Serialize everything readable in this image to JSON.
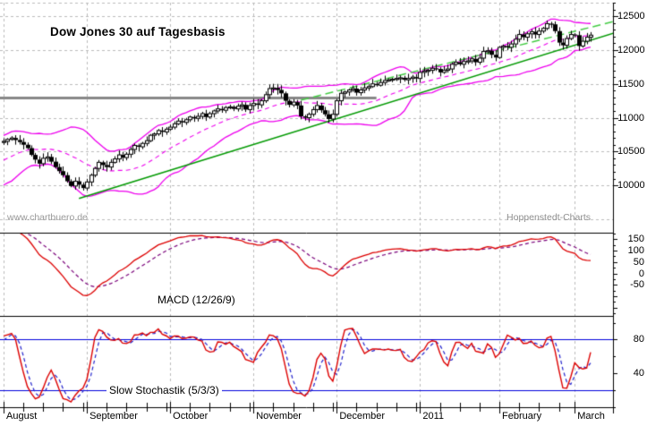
{
  "watermarks": {
    "left": "www.chartbuero.de",
    "right": "Hoppenstedt-Charts"
  },
  "colors": {
    "grid": "#bbbbbb",
    "border": "#000000",
    "candle_up": "#ffffff",
    "candle_down": "#000000",
    "candle_outline": "#000000",
    "bollinger": "#ee00ee",
    "trendline": "#009900",
    "channel": "#44cc44",
    "resistance": "#888888",
    "macd_line": "#dd0000",
    "macd_signal": "#7a007a",
    "macd_hist": "#2233bb",
    "stoch_k": "#dd0000",
    "stoch_d": "#2222cc",
    "stoch_hline": "#0000dd",
    "text": "#000000",
    "watermark": "#999999"
  },
  "axes": {
    "main_ticks": [
      12500,
      12000,
      11500,
      11000,
      10500,
      10000
    ],
    "macd_ticks": [
      150,
      100,
      50,
      0,
      -50
    ],
    "stoch_ticks": [
      80,
      40
    ]
  },
  "chart_data": [
    {
      "type": "candlestick",
      "title": "Dow Jones 30 auf Tagesbasis",
      "ylim": [
        9300,
        12700
      ],
      "months": [
        {
          "label": "August",
          "days": 21
        },
        {
          "label": "September",
          "days": 21
        },
        {
          "label": "October",
          "days": 21
        },
        {
          "label": "November",
          "days": 21
        },
        {
          "label": "December",
          "days": 21
        },
        {
          "label": "2011",
          "days": 20
        },
        {
          "label": "February",
          "days": 19
        },
        {
          "label": "March",
          "days": 5
        }
      ],
      "pre_closes": [
        9700,
        9740,
        9790,
        9860,
        9900,
        9960,
        10020,
        10080,
        10140,
        10090,
        10120,
        10180,
        10240,
        10280,
        10330,
        10370,
        10320,
        10360,
        10410,
        10460,
        10500,
        10540,
        10570,
        10530,
        10600,
        10640
      ],
      "closes": [
        10650,
        10680,
        10700,
        10670,
        10640,
        10600,
        10550,
        10450,
        10380,
        10320,
        10400,
        10420,
        10350,
        10270,
        10210,
        10150,
        10060,
        9990,
        10060,
        10010,
        9960,
        10050,
        10150,
        10250,
        10340,
        10300,
        10270,
        10340,
        10390,
        10450,
        10410,
        10460,
        10530,
        10590,
        10570,
        10620,
        10660,
        10740,
        10760,
        10810,
        10790,
        10830,
        10860,
        10910,
        10950,
        10930,
        10970,
        11010,
        10990,
        11020,
        11060,
        11010,
        11060,
        11100,
        11130,
        11110,
        11150,
        11160,
        11130,
        11170,
        11190,
        11120,
        11180,
        11210,
        11190,
        11250,
        11340,
        11430,
        11440,
        11410,
        11360,
        11250,
        11190,
        11230,
        11180,
        11020,
        11000,
        11050,
        11120,
        11180,
        11110,
        11050,
        10980,
        11050,
        11250,
        11360,
        11380,
        11410,
        11430,
        11370,
        11410,
        11440,
        11460,
        11500,
        11480,
        11520,
        11550,
        11560,
        11570,
        11580,
        11590,
        11560,
        11580,
        11600,
        11580,
        11670,
        11690,
        11700,
        11730,
        11720,
        11670,
        11700,
        11720,
        11790,
        11820,
        11790,
        11830,
        11840,
        11870,
        11820,
        11880,
        11980,
        11990,
        11930,
        11890,
        12040,
        12060,
        12040,
        12090,
        12160,
        12230,
        12190,
        12240,
        12270,
        12230,
        12280,
        12320,
        12390,
        12380,
        12280,
        12110,
        12070,
        12170,
        12230,
        12220,
        12060,
        12130,
        12190,
        12220
      ],
      "overlays": {
        "bollinger": {
          "period": 20,
          "stddev": 2
        },
        "trendline": {
          "from": {
            "day": 19,
            "price": 9805
          },
          "to": {
            "day": 154,
            "price": 12253
          }
        },
        "channel_dashed": {
          "from": {
            "day": 75,
            "price": 11260
          },
          "to": {
            "day": 154,
            "price": 12425
          }
        },
        "resistance": {
          "price": 11290,
          "from_day": 0,
          "to_day": 94
        }
      }
    },
    {
      "type": "macd",
      "label": "MACD (12/26/9)",
      "params": [
        12,
        26,
        9
      ],
      "ylim": [
        -186,
        179
      ]
    },
    {
      "type": "stochastic",
      "label": "Slow Stochastik (5/3/3)",
      "params": [
        5,
        3,
        3
      ],
      "ylim": [
        0,
        108
      ],
      "hlines": [
        80,
        20
      ]
    }
  ]
}
